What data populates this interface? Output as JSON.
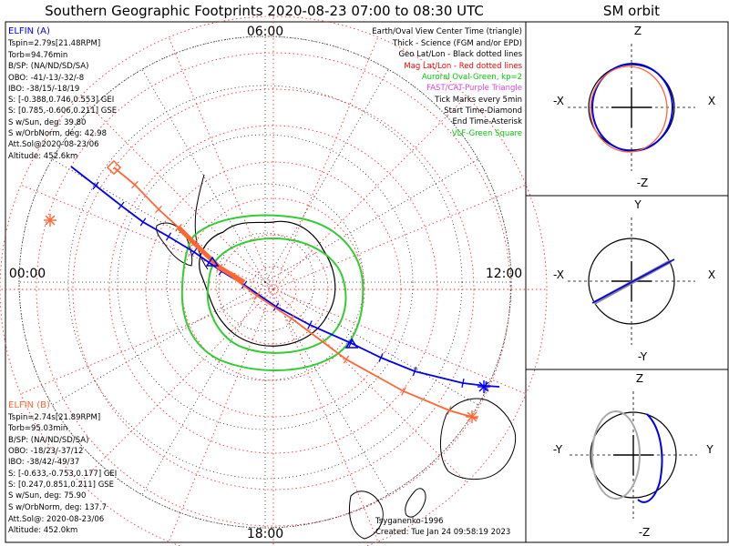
{
  "title": "Southern Geographic Footprints 2020-08-23 07:00 to 08:30 UTC",
  "orbit_title": "SM orbit",
  "clock_labels": {
    "top": "06:00",
    "left": "00:00",
    "right": "12:00",
    "bottom": "18:00"
  },
  "legend": [
    {
      "text": "Earth/Oval View Center Time (triangle)",
      "color": "#000000"
    },
    {
      "text": "Thick - Science (FGM and/or EPD)",
      "color": "#000000"
    },
    {
      "text": "Geo Lat/Lon - Black dotted lines",
      "color": "#000000"
    },
    {
      "text": "Mag Lat/Lon - Red dotted lines",
      "color": "#ff0000"
    },
    {
      "text": "Auroral Oval-Green, kp=2",
      "color": "#00cc00"
    },
    {
      "text": "FAST/CAT-Purple Triangle",
      "color": "#dd44dd"
    },
    {
      "text": "Tick Marks every 5min",
      "color": "#000000"
    },
    {
      "text": "Start Time-Diamond",
      "color": "#000000"
    },
    {
      "text": "End Time-Asterisk",
      "color": "#000000"
    },
    {
      "text": "VLF-Green Square",
      "color": "#00cc00"
    }
  ],
  "elfin_a": {
    "name": "ELFIN (A)",
    "color": "#0000ee",
    "lines": [
      "Tspin=2.79s[21.48RPM]",
      "Torb=94.76min",
      "B/SP: (NA/ND/SD/SA)",
      "OBO: -41/-13/-32/-8",
      "IBO: -38/15/-18/19",
      "S: [-0.388,0.746,0.553] GEI",
      "S: [0.785,-0.606,0.211] GSE",
      "S w/Sun, deg: 39.80",
      "S w/OrbNorm, deg: 42.98",
      "Att.Sol@2020-08-23/06",
      "Altitude: 452.6km"
    ]
  },
  "elfin_b": {
    "name": "ELFIN (B)",
    "color": "#ff6633",
    "lines": [
      "Tspin=2.74s[21.89RPM]",
      "Torb=95.03min",
      "B/SP: (NA/ND/SD/SA)",
      "OBO: -18/23/-37/12",
      "IBO: -38/42/-49/37",
      "S: [-0.633,-0.753,0.177] GEI",
      "S: [0.247,0.851,0.211] GSE",
      "S w/Sun, deg: 75.90",
      "S w/OrbNorm, deg: 137.7",
      "Att.Sol@: 2020-08-23/06",
      "Altitude: 452.0km"
    ]
  },
  "model": "Tsyganenko-1996",
  "created": "Created: Tue Jan 24 09:58:19 2023",
  "orbit_panels": [
    {
      "top": "Z",
      "bottom": "-Z",
      "left": "-X",
      "right": "X"
    },
    {
      "top": "Y",
      "bottom": "-Y",
      "left": "-X",
      "right": "X"
    },
    {
      "top": "Z",
      "bottom": "-Z",
      "left": "-Y",
      "right": "Y"
    }
  ],
  "colors": {
    "elfin_a": "#0000ee",
    "elfin_b": "#ff6633",
    "oval": "#33cc33",
    "mag_grid": "#ff3333",
    "geo_grid": "#000000"
  },
  "chart_data": {
    "type": "map",
    "projection": "south polar stereographic",
    "series": [
      {
        "name": "ELFIN (A)",
        "color": "#0000ee",
        "footprint_points": [
          [
            78,
            183
          ],
          [
            105,
            204
          ],
          [
            133,
            226
          ],
          [
            157,
            244
          ],
          [
            185,
            260
          ],
          [
            213,
            277
          ],
          [
            243,
            298
          ],
          [
            268,
            313
          ],
          [
            303,
            337
          ],
          [
            340,
            357
          ],
          [
            385,
            377
          ],
          [
            418,
            393
          ],
          [
            455,
            408
          ],
          [
            508,
            421
          ],
          [
            533,
            424
          ],
          [
            548,
            425
          ]
        ]
      },
      {
        "name": "ELFIN (B)",
        "color": "#ff6633",
        "footprint_points": [
          [
            125,
            184
          ],
          [
            148,
            203
          ],
          [
            174,
            230
          ],
          [
            196,
            250
          ],
          [
            213,
            267
          ],
          [
            241,
            294
          ],
          [
            282,
            325
          ],
          [
            320,
            350
          ],
          [
            380,
            395
          ],
          [
            443,
            430
          ],
          [
            493,
            451
          ],
          [
            524,
            460
          ]
        ]
      }
    ]
  }
}
